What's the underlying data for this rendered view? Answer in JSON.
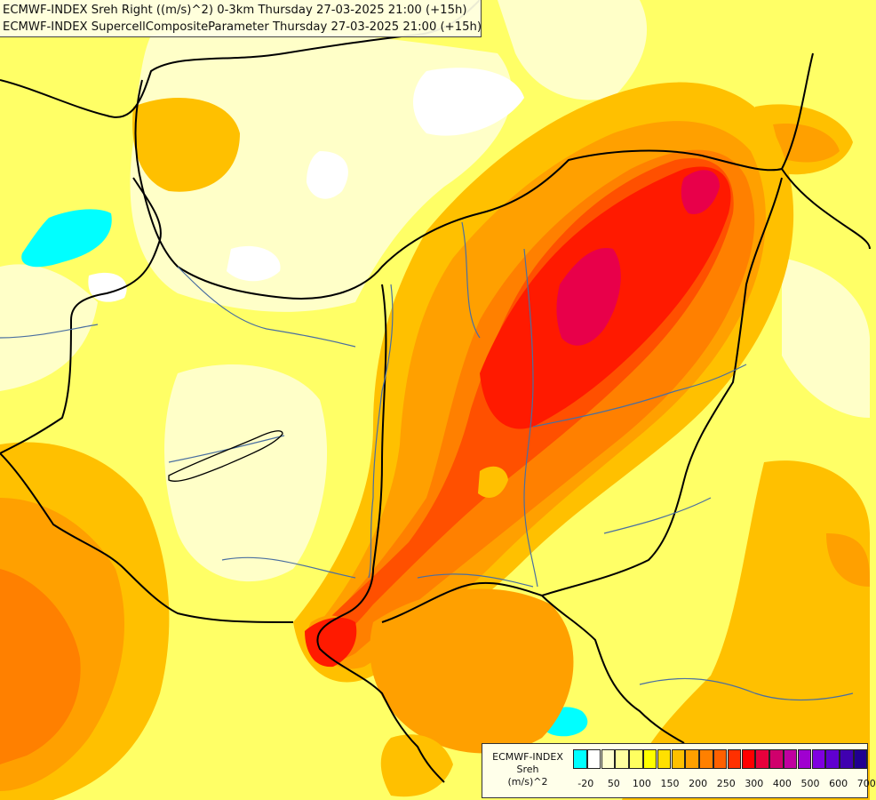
{
  "header": {
    "line1": "ECMWF-INDEX Sreh Right ((m/s)^2) 0-3km Thursday 27-03-2025 21:00 (+15h)",
    "line2": "ECMWF-INDEX SupercellCompositeParameter Thursday 27-03-2025 21:00 (+15h)"
  },
  "legend": {
    "model": "ECMWF-INDEX",
    "variable": "Sreh",
    "unit": "(m/s)^2",
    "colors": [
      "#00ffff",
      "#ffffff",
      "#ffffd0",
      "#ffffa0",
      "#ffff60",
      "#ffff00",
      "#ffe000",
      "#ffc000",
      "#ffa000",
      "#ff8000",
      "#ff6000",
      "#ff3000",
      "#ff0000",
      "#e8003c",
      "#d0006c",
      "#c000a0",
      "#a000d0",
      "#8000e0",
      "#6000d0",
      "#4000b0",
      "#200090"
    ],
    "ticks": [
      {
        "label": "-20",
        "index": 0
      },
      {
        "label": "50",
        "index": 2
      },
      {
        "label": "100",
        "index": 4
      },
      {
        "label": "150",
        "index": 6
      },
      {
        "label": "200",
        "index": 8
      },
      {
        "label": "250",
        "index": 10
      },
      {
        "label": "300",
        "index": 12
      },
      {
        "label": "400",
        "index": 14
      },
      {
        "label": "500",
        "index": 16
      },
      {
        "label": "600",
        "index": 18
      },
      {
        "label": "700",
        "index": 20
      }
    ]
  },
  "field_colors": {
    "background": "#ffff66",
    "pale": "#ffffc8",
    "white": "#ffffff",
    "cyan": "#00ffff",
    "light_orange": "#ffc000",
    "orange": "#ffa000",
    "dark_orange": "#ff8000",
    "red_orange": "#ff5000",
    "red": "#ff1a00",
    "crimson": "#e8004a",
    "magenta": "#d00070",
    "border": "#000000",
    "river": "#4a6fa0"
  }
}
